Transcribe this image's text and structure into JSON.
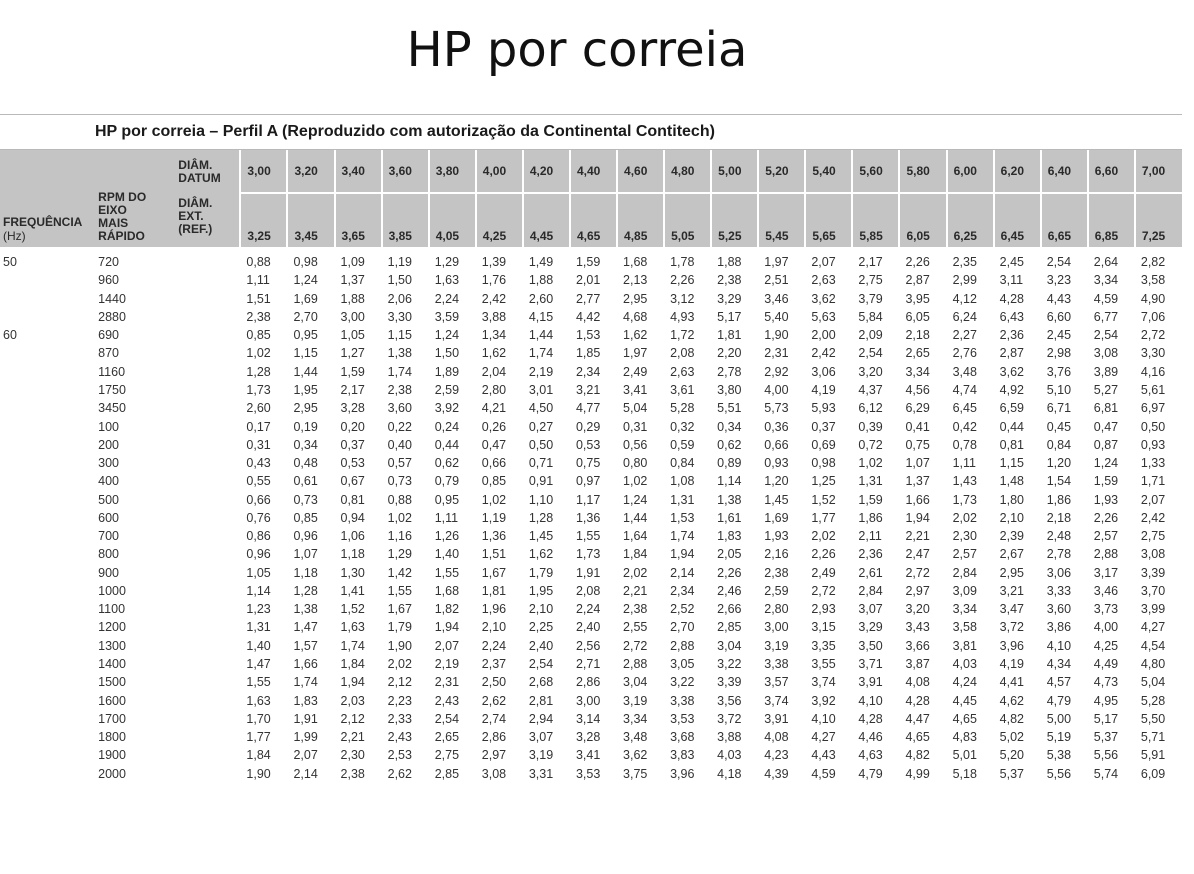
{
  "page": {
    "title": "HP por correia"
  },
  "table": {
    "caption": "HP por correia – Perfil A (Reproduzido com autorização da Continental Contitech)",
    "header": {
      "freq_label_line1": "FREQUÊNCIA",
      "freq_label_line2": "(Hz)",
      "rpm_label_line1": "RPM DO",
      "rpm_label_line2": "EIXO",
      "rpm_label_line3": "MAIS",
      "rpm_label_line4": "RÁPIDO",
      "datum_label_line1": "DIÂM.",
      "datum_label_line2": "DATUM",
      "ext_label_line1": "DIÂM.",
      "ext_label_line2": "EXT.",
      "ext_label_line3": "(REF.)",
      "datum_values": [
        "3,00",
        "3,20",
        "3,40",
        "3,60",
        "3,80",
        "4,00",
        "4,20",
        "4,40",
        "4,60",
        "4,80",
        "5,00",
        "5,20",
        "5,40",
        "5,60",
        "5,80",
        "6,00",
        "6,20",
        "6,40",
        "6,60",
        "7,00"
      ],
      "ext_values": [
        "3,25",
        "3,45",
        "3,65",
        "3,85",
        "4,05",
        "4,25",
        "4,45",
        "4,65",
        "4,85",
        "5,05",
        "5,25",
        "5,45",
        "5,65",
        "5,85",
        "6,05",
        "6,25",
        "6,45",
        "6,65",
        "6,85",
        "7,25"
      ]
    },
    "rows": [
      {
        "freq": "50",
        "rpm": "720",
        "values": [
          "0,88",
          "0,98",
          "1,09",
          "1,19",
          "1,29",
          "1,39",
          "1,49",
          "1,59",
          "1,68",
          "1,78",
          "1,88",
          "1,97",
          "2,07",
          "2,17",
          "2,26",
          "2,35",
          "2,45",
          "2,54",
          "2,64",
          "2,82"
        ]
      },
      {
        "freq": "",
        "rpm": "960",
        "values": [
          "1,11",
          "1,24",
          "1,37",
          "1,50",
          "1,63",
          "1,76",
          "1,88",
          "2,01",
          "2,13",
          "2,26",
          "2,38",
          "2,51",
          "2,63",
          "2,75",
          "2,87",
          "2,99",
          "3,11",
          "3,23",
          "3,34",
          "3,58"
        ]
      },
      {
        "freq": "",
        "rpm": "1440",
        "values": [
          "1,51",
          "1,69",
          "1,88",
          "2,06",
          "2,24",
          "2,42",
          "2,60",
          "2,77",
          "2,95",
          "3,12",
          "3,29",
          "3,46",
          "3,62",
          "3,79",
          "3,95",
          "4,12",
          "4,28",
          "4,43",
          "4,59",
          "4,90"
        ]
      },
      {
        "freq": "",
        "rpm": "2880",
        "values": [
          "2,38",
          "2,70",
          "3,00",
          "3,30",
          "3,59",
          "3,88",
          "4,15",
          "4,42",
          "4,68",
          "4,93",
          "5,17",
          "5,40",
          "5,63",
          "5,84",
          "6,05",
          "6,24",
          "6,43",
          "6,60",
          "6,77",
          "7,06"
        ]
      },
      {
        "freq": "60",
        "rpm": "690",
        "values": [
          "0,85",
          "0,95",
          "1,05",
          "1,15",
          "1,24",
          "1,34",
          "1,44",
          "1,53",
          "1,62",
          "1,72",
          "1,81",
          "1,90",
          "2,00",
          "2,09",
          "2,18",
          "2,27",
          "2,36",
          "2,45",
          "2,54",
          "2,72"
        ]
      },
      {
        "freq": "",
        "rpm": "870",
        "values": [
          "1,02",
          "1,15",
          "1,27",
          "1,38",
          "1,50",
          "1,62",
          "1,74",
          "1,85",
          "1,97",
          "2,08",
          "2,20",
          "2,31",
          "2,42",
          "2,54",
          "2,65",
          "2,76",
          "2,87",
          "2,98",
          "3,08",
          "3,30"
        ]
      },
      {
        "freq": "",
        "rpm": "1160",
        "values": [
          "1,28",
          "1,44",
          "1,59",
          "1,74",
          "1,89",
          "2,04",
          "2,19",
          "2,34",
          "2,49",
          "2,63",
          "2,78",
          "2,92",
          "3,06",
          "3,20",
          "3,34",
          "3,48",
          "3,62",
          "3,76",
          "3,89",
          "4,16"
        ]
      },
      {
        "freq": "",
        "rpm": "1750",
        "values": [
          "1,73",
          "1,95",
          "2,17",
          "2,38",
          "2,59",
          "2,80",
          "3,01",
          "3,21",
          "3,41",
          "3,61",
          "3,80",
          "4,00",
          "4,19",
          "4,37",
          "4,56",
          "4,74",
          "4,92",
          "5,10",
          "5,27",
          "5,61"
        ]
      },
      {
        "freq": "",
        "rpm": "3450",
        "values": [
          "2,60",
          "2,95",
          "3,28",
          "3,60",
          "3,92",
          "4,21",
          "4,50",
          "4,77",
          "5,04",
          "5,28",
          "5,51",
          "5,73",
          "5,93",
          "6,12",
          "6,29",
          "6,45",
          "6,59",
          "6,71",
          "6,81",
          "6,97"
        ]
      },
      {
        "freq": "",
        "rpm": "100",
        "values": [
          "0,17",
          "0,19",
          "0,20",
          "0,22",
          "0,24",
          "0,26",
          "0,27",
          "0,29",
          "0,31",
          "0,32",
          "0,34",
          "0,36",
          "0,37",
          "0,39",
          "0,41",
          "0,42",
          "0,44",
          "0,45",
          "0,47",
          "0,50"
        ]
      },
      {
        "freq": "",
        "rpm": "200",
        "values": [
          "0,31",
          "0,34",
          "0,37",
          "0,40",
          "0,44",
          "0,47",
          "0,50",
          "0,53",
          "0,56",
          "0,59",
          "0,62",
          "0,66",
          "0,69",
          "0,72",
          "0,75",
          "0,78",
          "0,81",
          "0,84",
          "0,87",
          "0,93"
        ]
      },
      {
        "freq": "",
        "rpm": "300",
        "values": [
          "0,43",
          "0,48",
          "0,53",
          "0,57",
          "0,62",
          "0,66",
          "0,71",
          "0,75",
          "0,80",
          "0,84",
          "0,89",
          "0,93",
          "0,98",
          "1,02",
          "1,07",
          "1,11",
          "1,15",
          "1,20",
          "1,24",
          "1,33"
        ]
      },
      {
        "freq": "",
        "rpm": "400",
        "values": [
          "0,55",
          "0,61",
          "0,67",
          "0,73",
          "0,79",
          "0,85",
          "0,91",
          "0,97",
          "1,02",
          "1,08",
          "1,14",
          "1,20",
          "1,25",
          "1,31",
          "1,37",
          "1,43",
          "1,48",
          "1,54",
          "1,59",
          "1,71"
        ]
      },
      {
        "freq": "",
        "rpm": "500",
        "values": [
          "0,66",
          "0,73",
          "0,81",
          "0,88",
          "0,95",
          "1,02",
          "1,10",
          "1,17",
          "1,24",
          "1,31",
          "1,38",
          "1,45",
          "1,52",
          "1,59",
          "1,66",
          "1,73",
          "1,80",
          "1,86",
          "1,93",
          "2,07"
        ]
      },
      {
        "freq": "",
        "rpm": "600",
        "values": [
          "0,76",
          "0,85",
          "0,94",
          "1,02",
          "1,11",
          "1,19",
          "1,28",
          "1,36",
          "1,44",
          "1,53",
          "1,61",
          "1,69",
          "1,77",
          "1,86",
          "1,94",
          "2,02",
          "2,10",
          "2,18",
          "2,26",
          "2,42"
        ]
      },
      {
        "freq": "",
        "rpm": "700",
        "values": [
          "0,86",
          "0,96",
          "1,06",
          "1,16",
          "1,26",
          "1,36",
          "1,45",
          "1,55",
          "1,64",
          "1,74",
          "1,83",
          "1,93",
          "2,02",
          "2,11",
          "2,21",
          "2,30",
          "2,39",
          "2,48",
          "2,57",
          "2,75"
        ]
      },
      {
        "freq": "",
        "rpm": "800",
        "values": [
          "0,96",
          "1,07",
          "1,18",
          "1,29",
          "1,40",
          "1,51",
          "1,62",
          "1,73",
          "1,84",
          "1,94",
          "2,05",
          "2,16",
          "2,26",
          "2,36",
          "2,47",
          "2,57",
          "2,67",
          "2,78",
          "2,88",
          "3,08"
        ]
      },
      {
        "freq": "",
        "rpm": "900",
        "values": [
          "1,05",
          "1,18",
          "1,30",
          "1,42",
          "1,55",
          "1,67",
          "1,79",
          "1,91",
          "2,02",
          "2,14",
          "2,26",
          "2,38",
          "2,49",
          "2,61",
          "2,72",
          "2,84",
          "2,95",
          "3,06",
          "3,17",
          "3,39"
        ]
      },
      {
        "freq": "",
        "rpm": "1000",
        "values": [
          "1,14",
          "1,28",
          "1,41",
          "1,55",
          "1,68",
          "1,81",
          "1,95",
          "2,08",
          "2,21",
          "2,34",
          "2,46",
          "2,59",
          "2,72",
          "2,84",
          "2,97",
          "3,09",
          "3,21",
          "3,33",
          "3,46",
          "3,70"
        ]
      },
      {
        "freq": "",
        "rpm": "1100",
        "values": [
          "1,23",
          "1,38",
          "1,52",
          "1,67",
          "1,82",
          "1,96",
          "2,10",
          "2,24",
          "2,38",
          "2,52",
          "2,66",
          "2,80",
          "2,93",
          "3,07",
          "3,20",
          "3,34",
          "3,47",
          "3,60",
          "3,73",
          "3,99"
        ]
      },
      {
        "freq": "",
        "rpm": "1200",
        "values": [
          "1,31",
          "1,47",
          "1,63",
          "1,79",
          "1,94",
          "2,10",
          "2,25",
          "2,40",
          "2,55",
          "2,70",
          "2,85",
          "3,00",
          "3,15",
          "3,29",
          "3,43",
          "3,58",
          "3,72",
          "3,86",
          "4,00",
          "4,27"
        ]
      },
      {
        "freq": "",
        "rpm": "1300",
        "values": [
          "1,40",
          "1,57",
          "1,74",
          "1,90",
          "2,07",
          "2,24",
          "2,40",
          "2,56",
          "2,72",
          "2,88",
          "3,04",
          "3,19",
          "3,35",
          "3,50",
          "3,66",
          "3,81",
          "3,96",
          "4,10",
          "4,25",
          "4,54"
        ]
      },
      {
        "freq": "",
        "rpm": "1400",
        "values": [
          "1,47",
          "1,66",
          "1,84",
          "2,02",
          "2,19",
          "2,37",
          "2,54",
          "2,71",
          "2,88",
          "3,05",
          "3,22",
          "3,38",
          "3,55",
          "3,71",
          "3,87",
          "4,03",
          "4,19",
          "4,34",
          "4,49",
          "4,80"
        ]
      },
      {
        "freq": "",
        "rpm": "1500",
        "values": [
          "1,55",
          "1,74",
          "1,94",
          "2,12",
          "2,31",
          "2,50",
          "2,68",
          "2,86",
          "3,04",
          "3,22",
          "3,39",
          "3,57",
          "3,74",
          "3,91",
          "4,08",
          "4,24",
          "4,41",
          "4,57",
          "4,73",
          "5,04"
        ]
      },
      {
        "freq": "",
        "rpm": "1600",
        "values": [
          "1,63",
          "1,83",
          "2,03",
          "2,23",
          "2,43",
          "2,62",
          "2,81",
          "3,00",
          "3,19",
          "3,38",
          "3,56",
          "3,74",
          "3,92",
          "4,10",
          "4,28",
          "4,45",
          "4,62",
          "4,79",
          "4,95",
          "5,28"
        ]
      },
      {
        "freq": "",
        "rpm": "1700",
        "values": [
          "1,70",
          "1,91",
          "2,12",
          "2,33",
          "2,54",
          "2,74",
          "2,94",
          "3,14",
          "3,34",
          "3,53",
          "3,72",
          "3,91",
          "4,10",
          "4,28",
          "4,47",
          "4,65",
          "4,82",
          "5,00",
          "5,17",
          "5,50"
        ]
      },
      {
        "freq": "",
        "rpm": "1800",
        "values": [
          "1,77",
          "1,99",
          "2,21",
          "2,43",
          "2,65",
          "2,86",
          "3,07",
          "3,28",
          "3,48",
          "3,68",
          "3,88",
          "4,08",
          "4,27",
          "4,46",
          "4,65",
          "4,83",
          "5,02",
          "5,19",
          "5,37",
          "5,71"
        ]
      },
      {
        "freq": "",
        "rpm": "1900",
        "values": [
          "1,84",
          "2,07",
          "2,30",
          "2,53",
          "2,75",
          "2,97",
          "3,19",
          "3,41",
          "3,62",
          "3,83",
          "4,03",
          "4,23",
          "4,43",
          "4,63",
          "4,82",
          "5,01",
          "5,20",
          "5,38",
          "5,56",
          "5,91"
        ]
      },
      {
        "freq": "",
        "rpm": "2000",
        "values": [
          "1,90",
          "2,14",
          "2,38",
          "2,62",
          "2,85",
          "3,08",
          "3,31",
          "3,53",
          "3,75",
          "3,96",
          "4,18",
          "4,39",
          "4,59",
          "4,79",
          "4,99",
          "5,18",
          "5,37",
          "5,56",
          "5,74",
          "6,09"
        ]
      }
    ]
  }
}
